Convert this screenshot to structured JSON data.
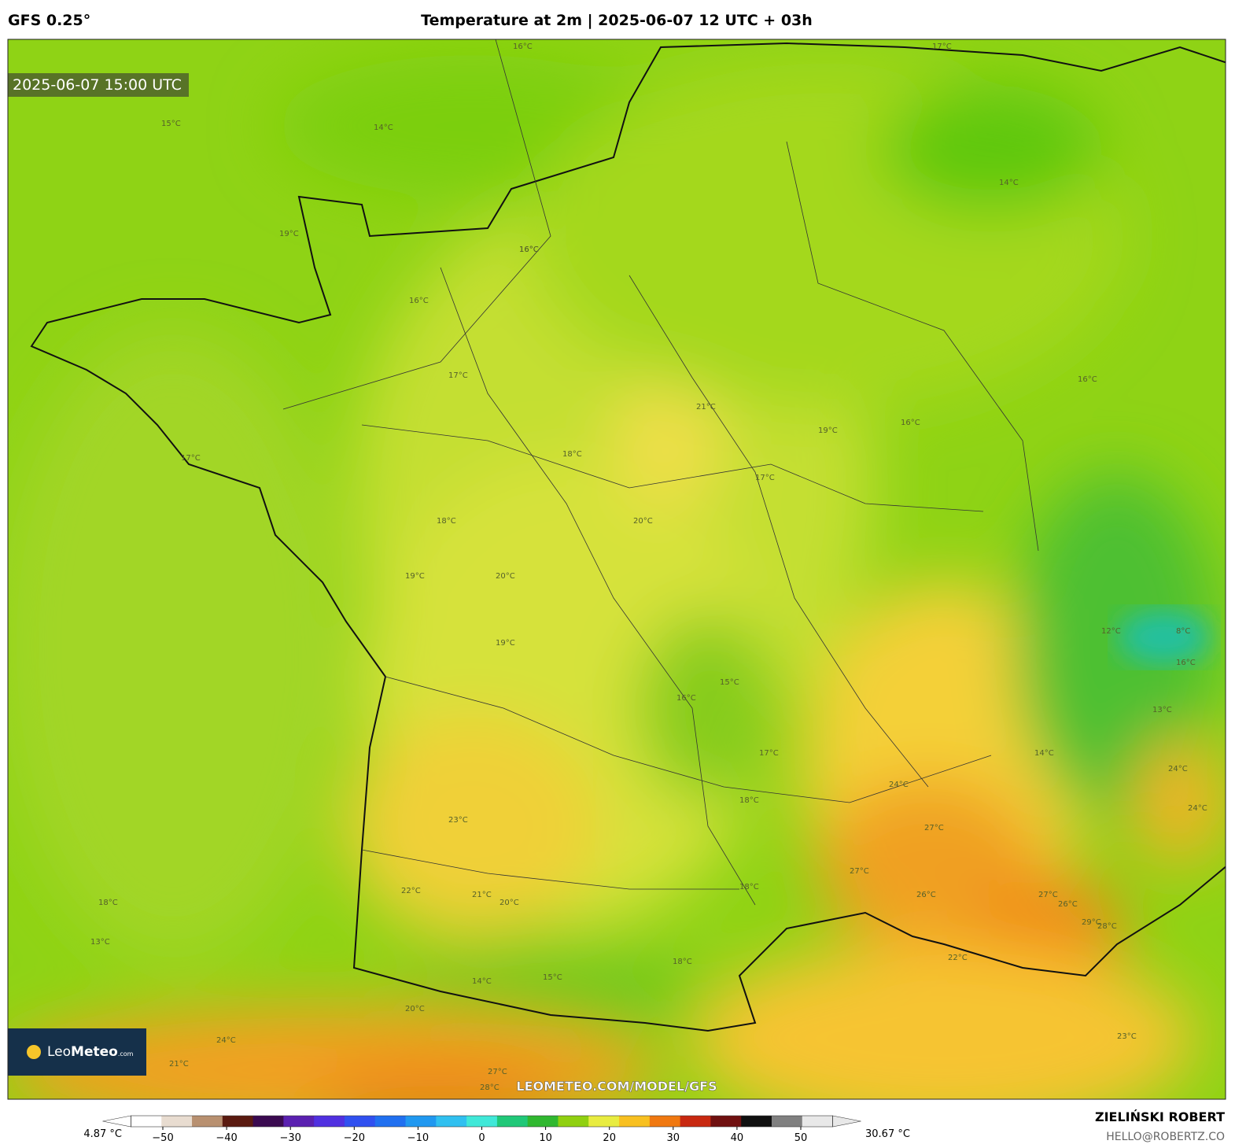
{
  "header": {
    "model": "GFS 0.25°",
    "title": "Temperature at 2m | 2025-06-07 12 UTC + 03h"
  },
  "map": {
    "valid_time": "2025-06-07 15:00 UTC",
    "watermark": "LEOMETEO.COM/MODEL/GFS",
    "logo": {
      "name_light": "Leo",
      "name_bold": "Meteo",
      "suffix": ".com"
    },
    "contour_labels": [
      "16°C",
      "17°C",
      "14°C",
      "15°C",
      "16°C",
      "13°C",
      "19°C",
      "16°C",
      "16°C",
      "17°C",
      "17°C",
      "20°C",
      "18°C",
      "21°C",
      "18°C",
      "20°C",
      "19°C",
      "20°C",
      "19°C",
      "16°C",
      "17°C",
      "19°C",
      "18°C",
      "17°C",
      "15°C",
      "16°C",
      "14°C",
      "16°C",
      "23°C",
      "22°C",
      "21°C",
      "20°C",
      "18°C",
      "18°C",
      "14°C",
      "15°C",
      "18°C",
      "24°C",
      "27°C",
      "27°C",
      "26°C",
      "28°C",
      "27°C",
      "29°C",
      "22°C",
      "23°C",
      "24°C",
      "21°C",
      "24°C",
      "27°C",
      "26°C",
      "28°C",
      "14°C",
      "8°C",
      "12°C",
      "16°C",
      "13°C",
      "24°C"
    ]
  },
  "colorbar": {
    "min_label": "4.87 °C",
    "max_label": "30.67 °C",
    "lim": [
      -55,
      55
    ],
    "ticks": [
      {
        "value": -50,
        "label": "−50"
      },
      {
        "value": -40,
        "label": "−40"
      },
      {
        "value": -30,
        "label": "−30"
      },
      {
        "value": -20,
        "label": "−20"
      },
      {
        "value": -10,
        "label": "−10"
      },
      0,
      10,
      20,
      30,
      40,
      50
    ],
    "colors": [
      "#ffffff",
      "#e8dcd0",
      "#b89070",
      "#5a1a10",
      "#3a0a50",
      "#5a20b0",
      "#5030e0",
      "#3050f0",
      "#2070f0",
      "#2098f0",
      "#30c0f0",
      "#40e8d8",
      "#20c878",
      "#30b830",
      "#90d010",
      "#e8ec40",
      "#f8c020",
      "#f07810",
      "#c82810",
      "#701010",
      "#101010",
      "#808080",
      "#e8e8e8"
    ]
  },
  "footer": {
    "author": "ZIELIŃSKI ROBERT",
    "contact": "HELLO@ROBERTZ.CO"
  }
}
